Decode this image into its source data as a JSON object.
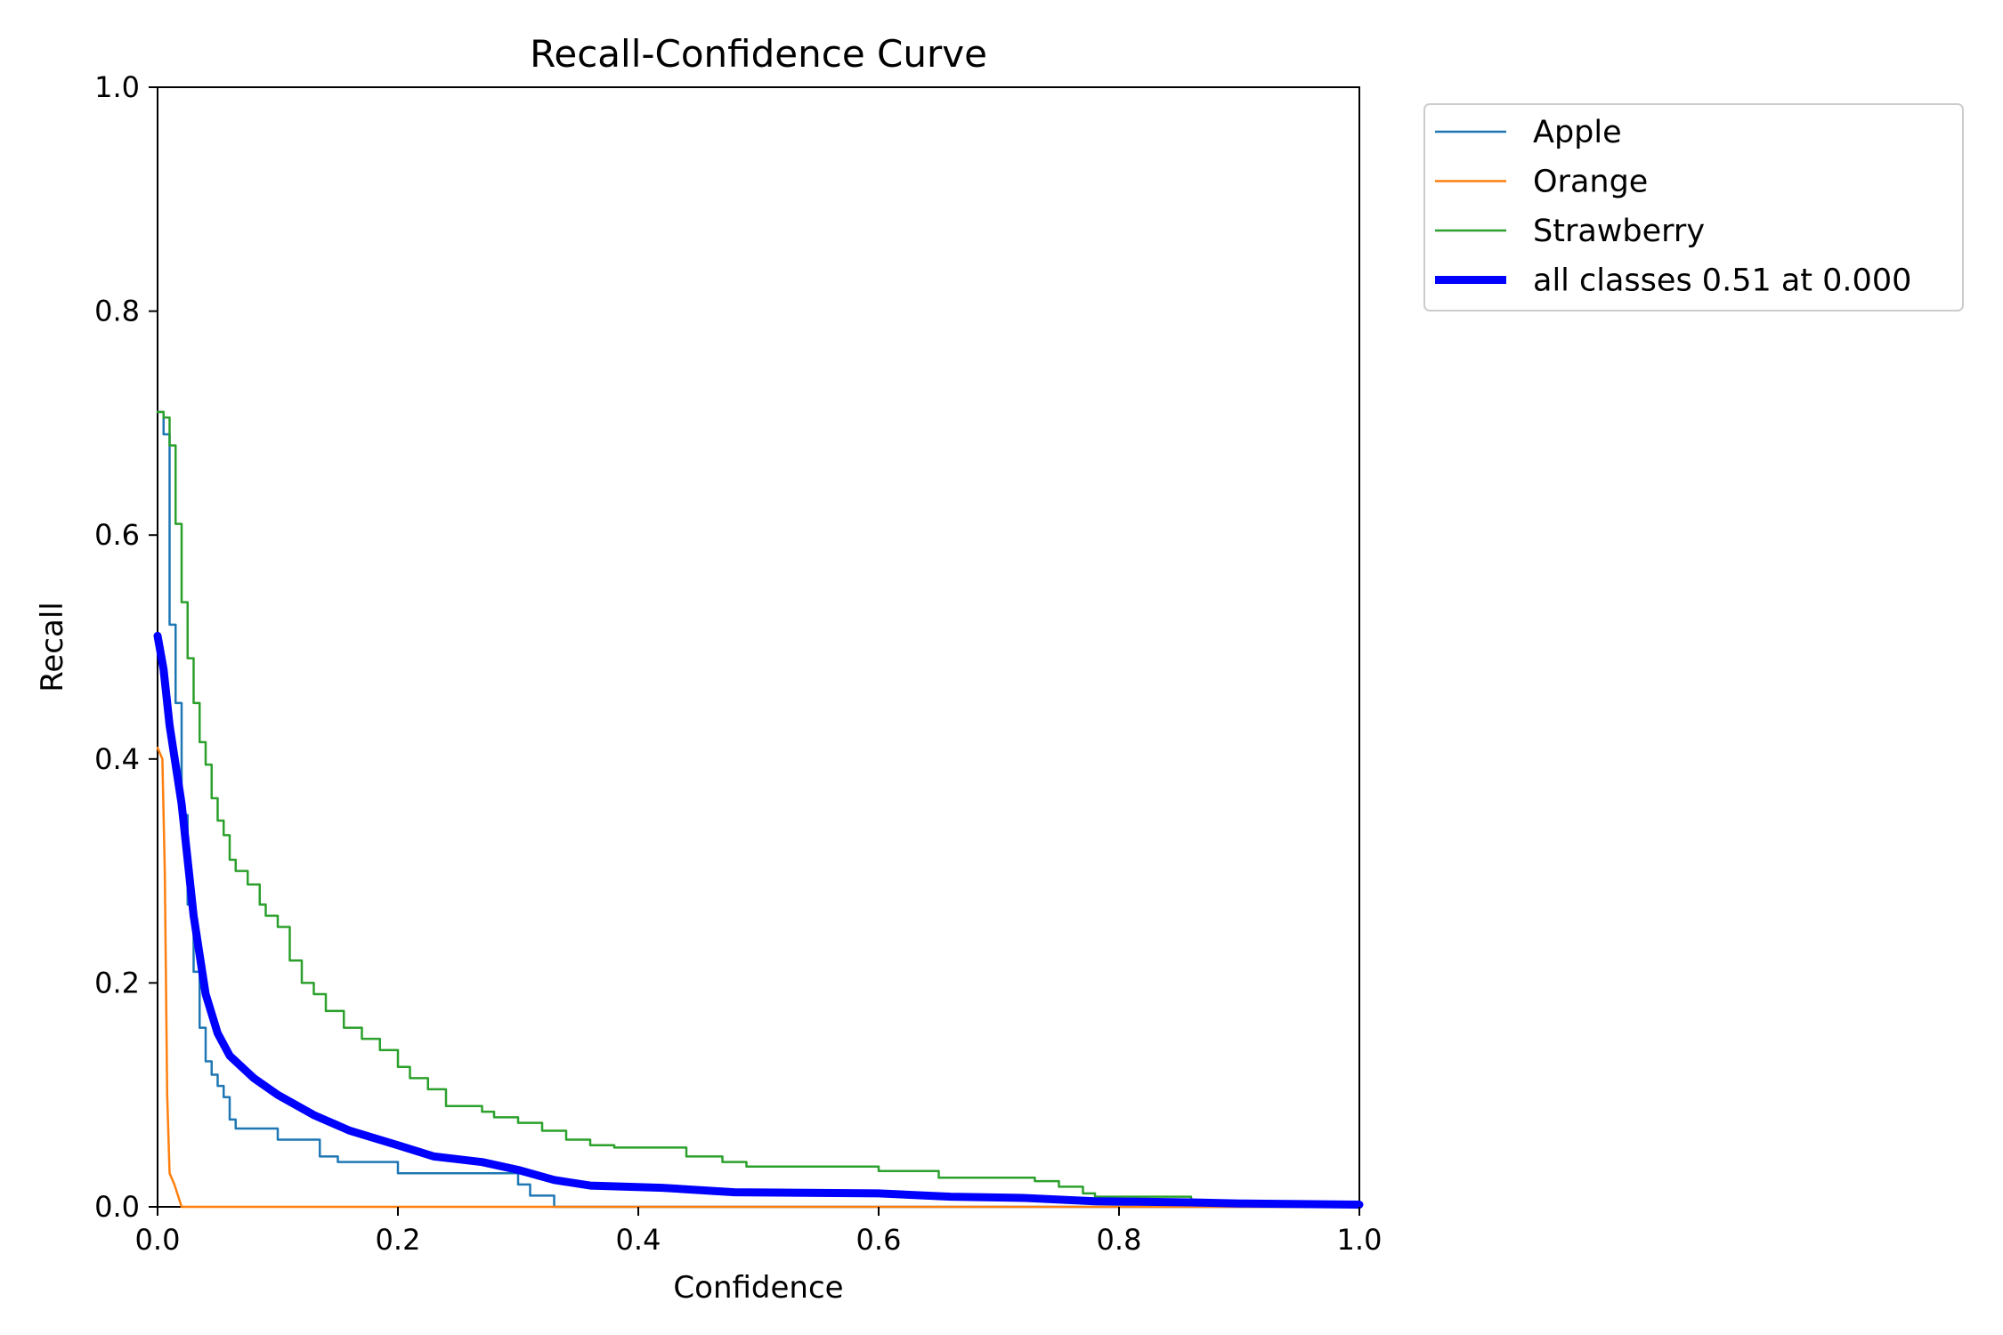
{
  "chart_data": {
    "type": "line",
    "title": "Recall-Confidence Curve",
    "xlabel": "Confidence",
    "ylabel": "Recall",
    "xlim": [
      0,
      1
    ],
    "ylim": [
      0,
      1
    ],
    "xticks": [
      "0.0",
      "0.2",
      "0.4",
      "0.6",
      "0.8",
      "1.0"
    ],
    "yticks": [
      "0.0",
      "0.2",
      "0.4",
      "0.6",
      "0.8",
      "1.0"
    ],
    "grid": false,
    "legend_position": "outside-top-right",
    "series": [
      {
        "name": "Apple",
        "color": "#1f77b4",
        "step": true,
        "points": [
          [
            0.0,
            0.71
          ],
          [
            0.005,
            0.69
          ],
          [
            0.01,
            0.52
          ],
          [
            0.015,
            0.45
          ],
          [
            0.02,
            0.35
          ],
          [
            0.025,
            0.27
          ],
          [
            0.03,
            0.21
          ],
          [
            0.035,
            0.16
          ],
          [
            0.04,
            0.13
          ],
          [
            0.045,
            0.118
          ],
          [
            0.05,
            0.108
          ],
          [
            0.055,
            0.098
          ],
          [
            0.06,
            0.078
          ],
          [
            0.065,
            0.07
          ],
          [
            0.09,
            0.07
          ],
          [
            0.1,
            0.06
          ],
          [
            0.125,
            0.06
          ],
          [
            0.135,
            0.045
          ],
          [
            0.15,
            0.04
          ],
          [
            0.19,
            0.04
          ],
          [
            0.2,
            0.03
          ],
          [
            0.29,
            0.03
          ],
          [
            0.3,
            0.02
          ],
          [
            0.31,
            0.01
          ],
          [
            0.325,
            0.01
          ],
          [
            0.33,
            0.0
          ],
          [
            1.0,
            0.0
          ]
        ]
      },
      {
        "name": "Orange",
        "color": "#ff7f0e",
        "step": false,
        "points": [
          [
            0.0,
            0.41
          ],
          [
            0.004,
            0.4
          ],
          [
            0.006,
            0.3
          ],
          [
            0.008,
            0.1
          ],
          [
            0.01,
            0.03
          ],
          [
            0.014,
            0.02
          ],
          [
            0.017,
            0.01
          ],
          [
            0.02,
            0.0
          ],
          [
            1.0,
            0.0
          ]
        ]
      },
      {
        "name": "Strawberry",
        "color": "#2ca02c",
        "step": true,
        "points": [
          [
            0.0,
            0.71
          ],
          [
            0.005,
            0.705
          ],
          [
            0.01,
            0.68
          ],
          [
            0.015,
            0.61
          ],
          [
            0.02,
            0.54
          ],
          [
            0.025,
            0.49
          ],
          [
            0.03,
            0.45
          ],
          [
            0.035,
            0.415
          ],
          [
            0.04,
            0.395
          ],
          [
            0.045,
            0.365
          ],
          [
            0.05,
            0.345
          ],
          [
            0.055,
            0.332
          ],
          [
            0.06,
            0.31
          ],
          [
            0.065,
            0.3
          ],
          [
            0.075,
            0.288
          ],
          [
            0.085,
            0.27
          ],
          [
            0.09,
            0.26
          ],
          [
            0.1,
            0.25
          ],
          [
            0.11,
            0.22
          ],
          [
            0.12,
            0.2
          ],
          [
            0.13,
            0.19
          ],
          [
            0.14,
            0.175
          ],
          [
            0.155,
            0.16
          ],
          [
            0.17,
            0.15
          ],
          [
            0.185,
            0.14
          ],
          [
            0.2,
            0.125
          ],
          [
            0.21,
            0.115
          ],
          [
            0.225,
            0.105
          ],
          [
            0.24,
            0.09
          ],
          [
            0.27,
            0.085
          ],
          [
            0.28,
            0.08
          ],
          [
            0.3,
            0.075
          ],
          [
            0.32,
            0.068
          ],
          [
            0.34,
            0.06
          ],
          [
            0.36,
            0.055
          ],
          [
            0.38,
            0.053
          ],
          [
            0.44,
            0.045
          ],
          [
            0.47,
            0.04
          ],
          [
            0.49,
            0.036
          ],
          [
            0.6,
            0.032
          ],
          [
            0.65,
            0.026
          ],
          [
            0.73,
            0.023
          ],
          [
            0.75,
            0.018
          ],
          [
            0.77,
            0.012
          ],
          [
            0.78,
            0.009
          ],
          [
            0.86,
            0.004
          ],
          [
            1.0,
            0.002
          ]
        ]
      },
      {
        "name": "all classes 0.51 at 0.000",
        "color": "#0000ff",
        "step": false,
        "thick": true,
        "points": [
          [
            0.0,
            0.51
          ],
          [
            0.005,
            0.48
          ],
          [
            0.01,
            0.43
          ],
          [
            0.02,
            0.36
          ],
          [
            0.03,
            0.26
          ],
          [
            0.04,
            0.19
          ],
          [
            0.05,
            0.155
          ],
          [
            0.06,
            0.135
          ],
          [
            0.08,
            0.115
          ],
          [
            0.1,
            0.1
          ],
          [
            0.13,
            0.082
          ],
          [
            0.16,
            0.068
          ],
          [
            0.2,
            0.055
          ],
          [
            0.23,
            0.045
          ],
          [
            0.27,
            0.04
          ],
          [
            0.3,
            0.033
          ],
          [
            0.33,
            0.024
          ],
          [
            0.36,
            0.019
          ],
          [
            0.42,
            0.017
          ],
          [
            0.48,
            0.013
          ],
          [
            0.6,
            0.012
          ],
          [
            0.66,
            0.009
          ],
          [
            0.72,
            0.008
          ],
          [
            0.78,
            0.005
          ],
          [
            0.86,
            0.004
          ],
          [
            0.9,
            0.003
          ],
          [
            1.0,
            0.002
          ]
        ]
      }
    ]
  }
}
